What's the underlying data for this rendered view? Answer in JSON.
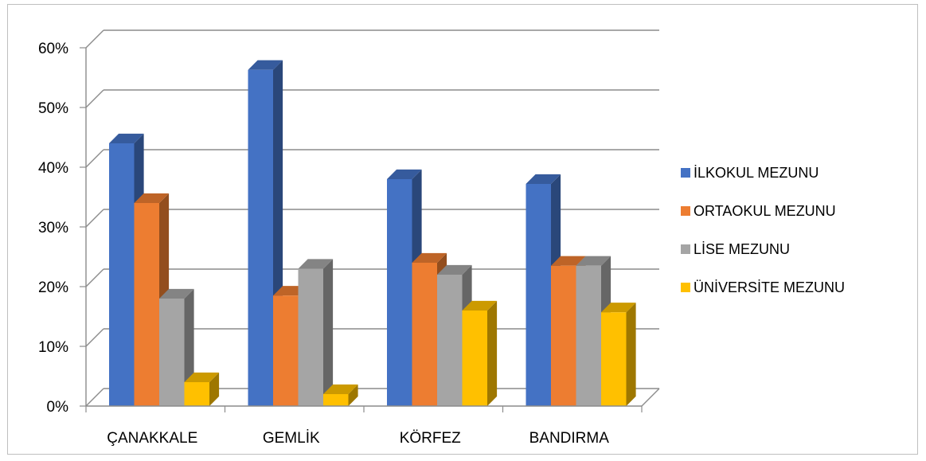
{
  "chart_data": {
    "type": "bar",
    "title": "",
    "xlabel": "",
    "ylabel": "",
    "three_d": true,
    "grid": true,
    "legend_position": "right",
    "categories": [
      "ÇANAKKALE",
      "GEMLİK",
      "KÖRFEZ",
      "BANDIRMA"
    ],
    "ylim": [
      0,
      60
    ],
    "y_ticks": [
      "0%",
      "10%",
      "20%",
      "30%",
      "40%",
      "50%",
      "60%"
    ],
    "series": [
      {
        "name": "İLKOKUL MEZUNU",
        "color": "#4472c4",
        "values": [
          44,
          56.3,
          38,
          37.2
        ]
      },
      {
        "name": "ORTAOKUL MEZUNU",
        "color": "#ed7d31",
        "values": [
          34,
          18.5,
          24,
          23.5
        ]
      },
      {
        "name": "LİSE MEZUNU",
        "color": "#a5a5a5",
        "values": [
          18,
          23,
          22,
          23.5
        ]
      },
      {
        "name": "ÜNİVERSİTE MEZUNU",
        "color": "#ffc000",
        "values": [
          4,
          2,
          16,
          15.7
        ]
      }
    ]
  }
}
